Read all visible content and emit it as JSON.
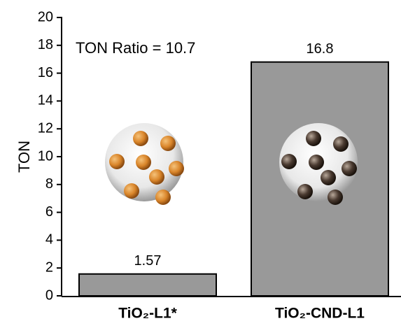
{
  "chart_data": {
    "type": "bar",
    "y_label": "TON",
    "annotation": "TON Ratio = 10.7",
    "categories": [
      "TiO₂-L1*",
      "TiO₂-CND-L1"
    ],
    "values": [
      1.57,
      16.8
    ],
    "color": "#999999",
    "ylim": [
      0,
      20
    ],
    "yticks": [
      0,
      2,
      4,
      6,
      8,
      10,
      12,
      14,
      16,
      18,
      20
    ]
  }
}
